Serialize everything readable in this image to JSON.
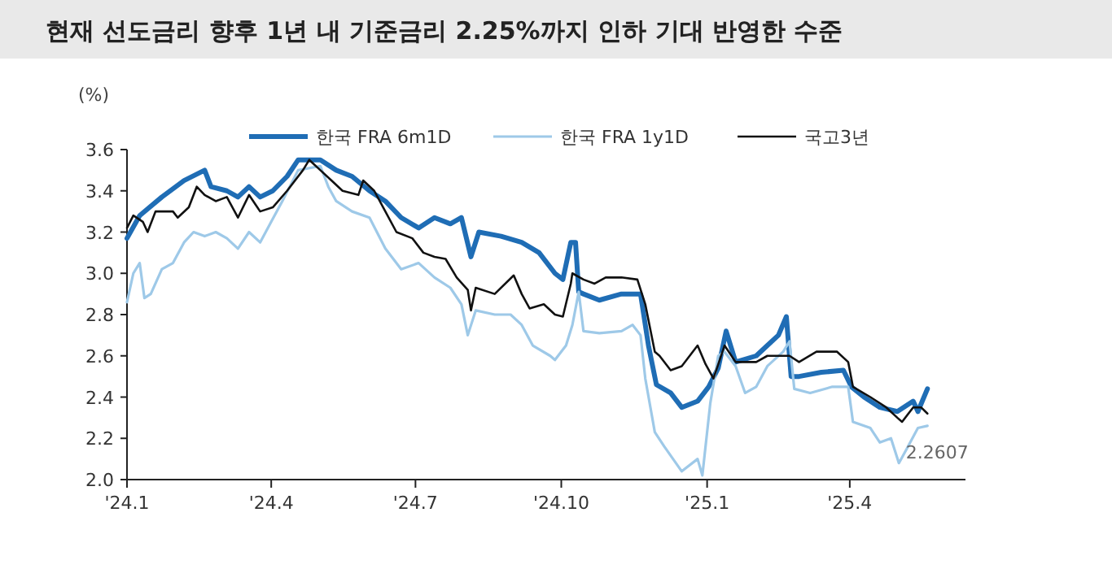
{
  "chart_data": {
    "type": "line",
    "title": "현재 선도금리 향후 1년 내 기준금리 2.25%까지 인하 기대 반영한 수준",
    "ylabel": "(%)",
    "xlim": [
      "2024-01-01",
      "2025-06-13"
    ],
    "xticks": [
      {
        "value": "2024-01-01",
        "label": "'24.1"
      },
      {
        "value": "2024-04-01",
        "label": "'24.4"
      },
      {
        "value": "2024-07-01",
        "label": "'24.7"
      },
      {
        "value": "2024-10-01",
        "label": "'24.10"
      },
      {
        "value": "2025-01-01",
        "label": "'25.1"
      },
      {
        "value": "2025-04-01",
        "label": "'25.4"
      }
    ],
    "ylim": [
      2,
      3.6
    ],
    "yticks": [
      {
        "value": 2,
        "label": "2.0"
      },
      2.2,
      2.4,
      2.6,
      2.8,
      {
        "value": 3,
        "label": "3.0"
      },
      3.2,
      3.4,
      3.6
    ],
    "legend": "top right",
    "grid": false,
    "marker": "none",
    "line_style": "solid",
    "annotations": [
      {
        "text": "2.2607",
        "x": "2025-05-20",
        "y": 2.2607
      }
    ],
    "series": [
      {
        "name": "한국 FRA 6m1D",
        "color": "#1f6db5",
        "x": [
          "2024-01-01",
          "2024-01-09",
          "2024-01-23",
          "2024-02-06",
          "2024-02-19",
          "2024-02-23",
          "2024-03-04",
          "2024-03-11",
          "2024-03-18",
          "2024-03-25",
          "2024-04-02",
          "2024-04-11",
          "2024-04-18",
          "2024-05-02",
          "2024-05-12",
          "2024-05-22",
          "2024-06-02",
          "2024-06-12",
          "2024-06-22",
          "2024-07-03",
          "2024-07-13",
          "2024-07-23",
          "2024-07-30",
          "2024-08-05",
          "2024-08-10",
          "2024-08-24",
          "2024-09-06",
          "2024-09-17",
          "2024-09-27",
          "2024-10-02",
          "2024-10-07",
          "2024-10-10",
          "2024-10-12",
          "2024-10-15",
          "2024-10-25",
          "2024-11-08",
          "2024-11-20",
          "2024-11-25",
          "2024-11-30",
          "2024-12-09",
          "2024-12-16",
          "2024-12-26",
          "2025-01-02",
          "2025-01-08",
          "2025-01-13",
          "2025-01-19",
          "2025-02-01",
          "2025-02-08",
          "2025-02-15",
          "2025-02-20",
          "2025-02-23",
          "2025-02-28",
          "2025-03-14",
          "2025-03-28",
          "2025-04-02",
          "2025-04-10",
          "2025-04-20",
          "2025-05-01",
          "2025-05-11",
          "2025-05-14",
          "2025-05-20"
        ],
        "values": [
          3.17,
          3.28,
          3.37,
          3.45,
          3.5,
          3.42,
          3.4,
          3.37,
          3.42,
          3.37,
          3.4,
          3.47,
          3.55,
          3.55,
          3.5,
          3.47,
          3.4,
          3.35,
          3.27,
          3.22,
          3.27,
          3.24,
          3.27,
          3.08,
          3.2,
          3.18,
          3.15,
          3.1,
          3.0,
          2.97,
          3.15,
          3.15,
          2.91,
          2.9,
          2.87,
          2.9,
          2.9,
          2.65,
          2.46,
          2.42,
          2.35,
          2.38,
          2.45,
          2.54,
          2.72,
          2.57,
          2.6,
          2.65,
          2.7,
          2.79,
          2.5,
          2.5,
          2.52,
          2.53,
          2.45,
          2.4,
          2.35,
          2.33,
          2.38,
          2.33,
          2.44
        ]
      },
      {
        "name": "한국 FRA 1y1D",
        "color": "#9ec9e8",
        "x": [
          "2024-01-01",
          "2024-01-05",
          "2024-01-09",
          "2024-01-12",
          "2024-01-16",
          "2024-01-23",
          "2024-01-30",
          "2024-02-06",
          "2024-02-12",
          "2024-02-19",
          "2024-02-26",
          "2024-03-04",
          "2024-03-11",
          "2024-03-18",
          "2024-03-25",
          "2024-04-01",
          "2024-04-08",
          "2024-04-18",
          "2024-05-02",
          "2024-05-07",
          "2024-05-12",
          "2024-05-22",
          "2024-06-02",
          "2024-06-12",
          "2024-06-22",
          "2024-07-03",
          "2024-07-13",
          "2024-07-23",
          "2024-07-30",
          "2024-08-03",
          "2024-08-08",
          "2024-08-20",
          "2024-08-30",
          "2024-09-06",
          "2024-09-13",
          "2024-09-24",
          "2024-09-27",
          "2024-10-04",
          "2024-10-08",
          "2024-10-12",
          "2024-10-15",
          "2024-10-25",
          "2024-11-08",
          "2024-11-15",
          "2024-11-20",
          "2024-11-23",
          "2024-11-29",
          "2024-12-05",
          "2024-12-16",
          "2024-12-26",
          "2024-12-29",
          "2025-01-03",
          "2025-01-08",
          "2025-01-12",
          "2025-01-19",
          "2025-01-25",
          "2025-02-01",
          "2025-02-08",
          "2025-02-18",
          "2025-02-22",
          "2025-02-25",
          "2025-03-07",
          "2025-03-21",
          "2025-03-31",
          "2025-04-03",
          "2025-04-14",
          "2025-04-20",
          "2025-04-27",
          "2025-05-02",
          "2025-05-07",
          "2025-05-14",
          "2025-05-20"
        ],
        "values": [
          2.86,
          3.0,
          3.05,
          2.88,
          2.9,
          3.02,
          3.05,
          3.15,
          3.2,
          3.18,
          3.2,
          3.17,
          3.12,
          3.2,
          3.15,
          3.25,
          3.35,
          3.5,
          3.52,
          3.42,
          3.35,
          3.3,
          3.27,
          3.12,
          3.02,
          3.05,
          2.98,
          2.93,
          2.85,
          2.7,
          2.82,
          2.8,
          2.8,
          2.75,
          2.65,
          2.6,
          2.58,
          2.65,
          2.75,
          2.91,
          2.72,
          2.71,
          2.72,
          2.75,
          2.7,
          2.49,
          2.23,
          2.16,
          2.04,
          2.1,
          2.02,
          2.37,
          2.6,
          2.62,
          2.55,
          2.42,
          2.45,
          2.55,
          2.62,
          2.67,
          2.44,
          2.42,
          2.45,
          2.45,
          2.28,
          2.25,
          2.18,
          2.2,
          2.08,
          2.15,
          2.25,
          2.2607
        ]
      },
      {
        "name": "국고3년",
        "color": "#111111",
        "x": [
          "2024-01-01",
          "2024-01-05",
          "2024-01-11",
          "2024-01-14",
          "2024-01-19",
          "2024-01-30",
          "2024-02-02",
          "2024-02-09",
          "2024-02-14",
          "2024-02-19",
          "2024-02-26",
          "2024-03-04",
          "2024-03-11",
          "2024-03-18",
          "2024-03-25",
          "2024-04-02",
          "2024-04-11",
          "2024-04-21",
          "2024-04-25",
          "2024-05-02",
          "2024-05-09",
          "2024-05-16",
          "2024-05-26",
          "2024-05-29",
          "2024-06-05",
          "2024-06-12",
          "2024-06-19",
          "2024-06-29",
          "2024-07-06",
          "2024-07-13",
          "2024-07-20",
          "2024-07-27",
          "2024-08-03",
          "2024-08-05",
          "2024-08-08",
          "2024-08-20",
          "2024-09-01",
          "2024-09-06",
          "2024-09-11",
          "2024-09-20",
          "2024-09-27",
          "2024-10-02",
          "2024-10-07",
          "2024-10-08",
          "2024-10-15",
          "2024-10-22",
          "2024-10-29",
          "2024-11-08",
          "2024-11-18",
          "2024-11-23",
          "2024-11-29",
          "2024-12-02",
          "2024-12-09",
          "2024-12-16",
          "2024-12-26",
          "2024-12-31",
          "2025-01-05",
          "2025-01-12",
          "2025-01-19",
          "2025-02-01",
          "2025-02-08",
          "2025-02-22",
          "2025-02-28",
          "2025-03-11",
          "2025-03-24",
          "2025-03-31",
          "2025-04-03",
          "2025-04-14",
          "2025-04-24",
          "2025-05-01",
          "2025-05-04",
          "2025-05-11",
          "2025-05-16",
          "2025-05-20"
        ],
        "values": [
          3.22,
          3.28,
          3.25,
          3.2,
          3.3,
          3.3,
          3.27,
          3.32,
          3.42,
          3.38,
          3.35,
          3.37,
          3.27,
          3.38,
          3.3,
          3.32,
          3.4,
          3.5,
          3.55,
          3.5,
          3.45,
          3.4,
          3.38,
          3.45,
          3.4,
          3.3,
          3.2,
          3.17,
          3.1,
          3.08,
          3.07,
          2.98,
          2.92,
          2.82,
          2.93,
          2.9,
          2.99,
          2.9,
          2.83,
          2.85,
          2.8,
          2.79,
          2.95,
          3.0,
          2.97,
          2.95,
          2.98,
          2.98,
          2.97,
          2.85,
          2.62,
          2.6,
          2.53,
          2.55,
          2.65,
          2.56,
          2.49,
          2.65,
          2.57,
          2.57,
          2.6,
          2.6,
          2.57,
          2.62,
          2.62,
          2.57,
          2.45,
          2.4,
          2.35,
          2.3,
          2.28,
          2.35,
          2.35,
          2.32
        ]
      }
    ]
  }
}
